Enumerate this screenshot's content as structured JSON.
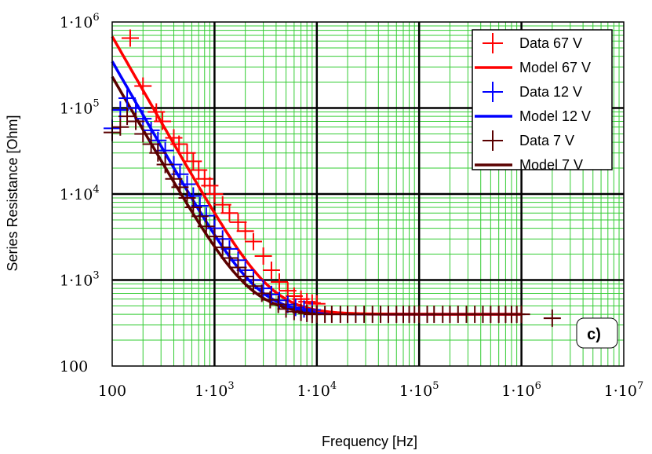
{
  "chart_data": {
    "type": "scatter",
    "title": "",
    "xlabel": "Frequency [Hz]",
    "ylabel": "Series Resistance [Ohm]",
    "xscale": "log",
    "yscale": "log",
    "xlim": [
      100,
      10000000
    ],
    "ylim": [
      100,
      1000000
    ],
    "grid": true,
    "legend_position": "top-right",
    "panel_label": "c)",
    "x_tick_labels": [
      {
        "value": 100,
        "base": "100",
        "exp": ""
      },
      {
        "value": 1000,
        "base": "1·10",
        "exp": "3"
      },
      {
        "value": 10000,
        "base": "1·10",
        "exp": "4"
      },
      {
        "value": 100000,
        "base": "1·10",
        "exp": "5"
      },
      {
        "value": 1000000,
        "base": "1·10",
        "exp": "6"
      },
      {
        "value": 10000000,
        "base": "1·10",
        "exp": "7"
      }
    ],
    "y_tick_labels": [
      {
        "value": 100,
        "base": "100",
        "exp": ""
      },
      {
        "value": 1000,
        "base": "1·10",
        "exp": "3"
      },
      {
        "value": 10000,
        "base": "1·10",
        "exp": "4"
      },
      {
        "value": 100000,
        "base": "1·10",
        "exp": "5"
      },
      {
        "value": 1000000,
        "base": "1·10",
        "exp": "6"
      }
    ],
    "model": {
      "x_min": 100,
      "x_max": 1000000,
      "baseline": 400
    },
    "series": [
      {
        "name": "Data 67 V",
        "kind": "data",
        "color": "#ff0000",
        "x": [
          150,
          200,
          270,
          310,
          400,
          450,
          540,
          620,
          700,
          800,
          900,
          1000,
          1200,
          1400,
          1700,
          2000,
          2400,
          3000,
          3600,
          4300,
          5200,
          6000,
          7000,
          8000,
          9000,
          10000
        ],
        "y": [
          650000,
          180000,
          90000,
          70000,
          45000,
          38000,
          30000,
          24000,
          19000,
          15000,
          12500,
          10000,
          7500,
          6000,
          4700,
          3700,
          2800,
          1900,
          1300,
          950,
          750,
          650,
          600,
          560,
          540,
          530
        ]
      },
      {
        "name": "Model 67 V",
        "kind": "model",
        "color": "#ff0000",
        "params": {
          "A": 9800000000.0,
          "n": 2.08
        }
      },
      {
        "name": "Data 12 V",
        "kind": "data",
        "color": "#0000ff",
        "x": [
          100,
          120,
          140,
          170,
          200,
          240,
          280,
          330,
          400,
          460,
          540,
          620,
          720,
          830,
          1000,
          1200,
          1400,
          1700,
          2000,
          2400,
          3000,
          3600,
          4300,
          5200,
          6200,
          7500,
          9000
        ],
        "y": [
          58000,
          95000,
          130000,
          100000,
          75000,
          55000,
          42000,
          32000,
          22000,
          17000,
          13000,
          9500,
          7300,
          5600,
          4000,
          3000,
          2300,
          1700,
          1300,
          1000,
          800,
          680,
          580,
          520,
          480,
          460,
          450
        ]
      },
      {
        "name": "Model 12 V",
        "kind": "model",
        "color": "#0000ff",
        "params": {
          "A": 4800000000.0,
          "n": 2.07
        }
      },
      {
        "name": "Data 7 V",
        "kind": "data",
        "color": "#5a0000",
        "x": [
          100,
          120,
          140,
          170,
          200,
          240,
          280,
          330,
          400,
          460,
          540,
          620,
          720,
          830,
          1000,
          1200,
          1400,
          1700,
          2000,
          2400,
          2900,
          3500,
          4200,
          5000,
          6000,
          7000,
          8000,
          9000,
          10000,
          12000,
          14000,
          17000,
          20000,
          24000,
          29000,
          35000,
          42000,
          50000,
          60000,
          70000,
          80000,
          90000,
          100000,
          120000,
          140000,
          170000,
          200000,
          240000,
          290000,
          350000,
          420000,
          500000,
          600000,
          700000,
          800000,
          900000,
          1000000,
          2000000
        ],
        "y": [
          52000,
          60000,
          80000,
          70000,
          50000,
          38000,
          30000,
          22000,
          15000,
          12000,
          9000,
          7000,
          5500,
          4200,
          3200,
          2400,
          1800,
          1400,
          1100,
          850,
          700,
          590,
          520,
          460,
          430,
          420,
          410,
          400,
          400,
          400,
          400,
          400,
          400,
          400,
          400,
          400,
          400,
          400,
          400,
          400,
          400,
          400,
          400,
          400,
          400,
          400,
          400,
          400,
          400,
          400,
          400,
          400,
          400,
          400,
          400,
          400,
          400,
          360
        ]
      },
      {
        "name": "Model 7 V",
        "kind": "model",
        "color": "#5a0000",
        "params": {
          "A": 2900000000.0,
          "n": 2.05
        }
      }
    ]
  }
}
